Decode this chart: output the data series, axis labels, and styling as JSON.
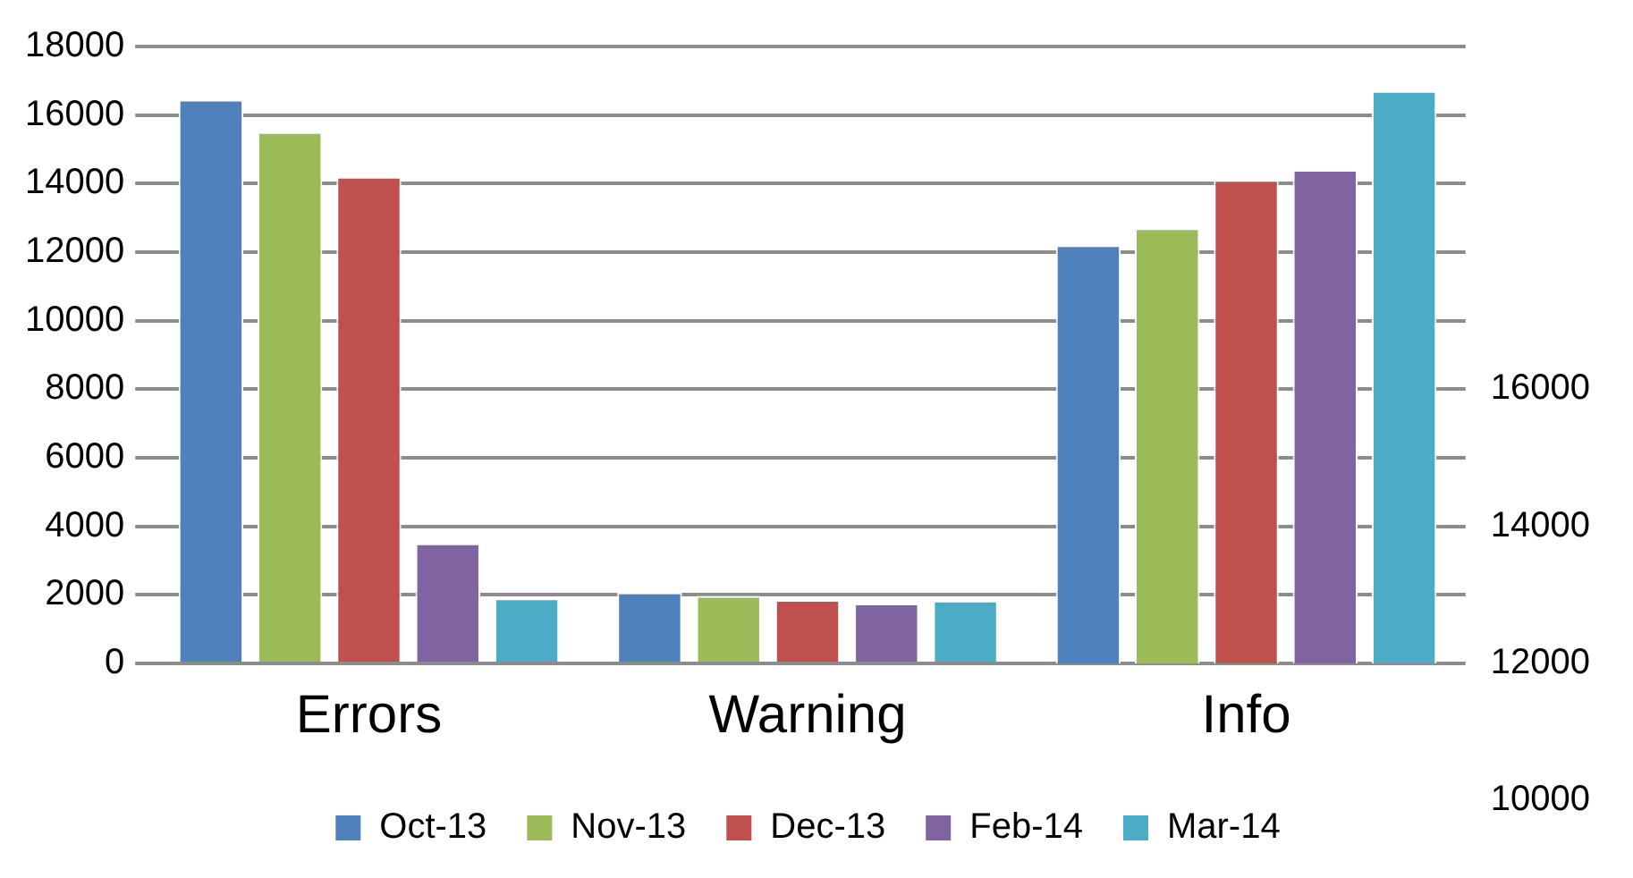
{
  "chart_data": {
    "type": "bar",
    "categories": [
      "Errors",
      "Warning",
      "Info"
    ],
    "series": [
      {
        "name": "Oct-13",
        "color": "#4f81bd",
        "values": [
          16450,
          2070,
          null
        ]
      },
      {
        "name": "Nov-13",
        "color": "#9bbb59",
        "values": [
          15500,
          1970,
          null
        ]
      },
      {
        "name": "Dec-13",
        "color": "#c0504d",
        "values": [
          14200,
          1850,
          null
        ]
      },
      {
        "name": "Feb-14",
        "color": "#8064a2",
        "values": [
          3500,
          1750,
          null
        ]
      },
      {
        "name": "Mar-14",
        "color": "#4bacc6",
        "values": [
          1900,
          1830,
          null
        ]
      },
      {
        "color": "#4f81bd",
        "axis": "y2",
        "values": [
          null,
          null,
          18100
        ]
      },
      {
        "color": "#9bbb59",
        "axis": "y2",
        "values": [
          null,
          null,
          18350
        ]
      },
      {
        "color": "#c0504d",
        "axis": "y2",
        "values": [
          null,
          null,
          19050
        ]
      },
      {
        "color": "#8064a2",
        "axis": "y2",
        "values": [
          null,
          null,
          19200
        ]
      },
      {
        "color": "#4bacc6",
        "axis": "y2",
        "values": [
          null,
          null,
          20350
        ]
      }
    ],
    "ylim": [
      0,
      18000
    ],
    "yticks": [
      0,
      2000,
      4000,
      6000,
      8000,
      10000,
      12000,
      14000,
      16000,
      18000
    ],
    "y2lim": [
      12000,
      21000
    ],
    "y2ticks": [
      12000,
      14000,
      16000
    ],
    "annotations": [
      "10000"
    ],
    "grid": "y",
    "legend": "bottom"
  }
}
